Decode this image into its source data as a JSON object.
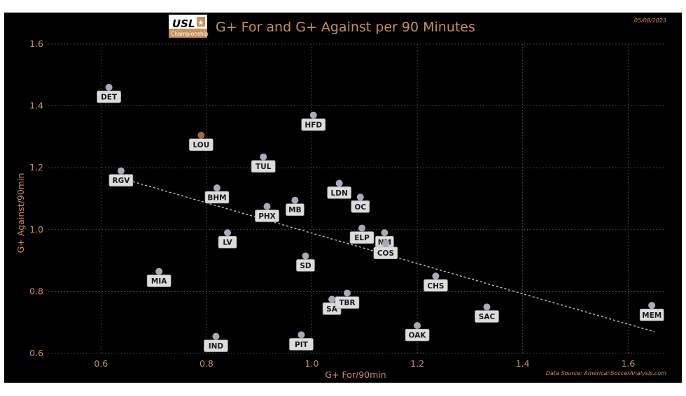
{
  "colors": {
    "accent": "#c8915a",
    "point": "#a9aab8",
    "highlight": "#a06a3c",
    "trend": "#cfcfcf",
    "background": "#000000"
  },
  "logo": {
    "text": "USL",
    "subtitle": "Championship"
  },
  "chart_data": {
    "type": "scatter",
    "title": "G+ For and G+ Against per 90 Minutes",
    "date": "05/08/2023",
    "source": "Data Source: AmericanSoccerAnalysis.com",
    "xlabel": "G+ For/90min",
    "ylabel": "G+ Against/90min",
    "xlim": [
      0.5,
      1.67
    ],
    "ylim": [
      0.6,
      1.6
    ],
    "xticks": [
      "0.6",
      "0.8",
      "1.0",
      "1.2",
      "1.4",
      "1.6"
    ],
    "yticks": [
      "0.6",
      "0.8",
      "1.0",
      "1.2",
      "1.4",
      "1.6"
    ],
    "grid": true,
    "trendline": {
      "x": [
        0.63,
        1.65
      ],
      "y": [
        1.17,
        0.67
      ]
    },
    "points": [
      {
        "label": "DET",
        "x": 0.615,
        "y": 1.46
      },
      {
        "label": "RGV",
        "x": 0.638,
        "y": 1.19
      },
      {
        "label": "MIA",
        "x": 0.71,
        "y": 0.865
      },
      {
        "label": "LOU",
        "x": 0.79,
        "y": 1.305,
        "highlight": true
      },
      {
        "label": "BHM",
        "x": 0.82,
        "y": 1.135
      },
      {
        "label": "IND",
        "x": 0.818,
        "y": 0.655
      },
      {
        "label": "LV",
        "x": 0.84,
        "y": 0.99
      },
      {
        "label": "TUL",
        "x": 0.908,
        "y": 1.235
      },
      {
        "label": "PHX",
        "x": 0.915,
        "y": 1.075
      },
      {
        "label": "MB",
        "x": 0.968,
        "y": 1.095
      },
      {
        "label": "PIT",
        "x": 0.98,
        "y": 0.66
      },
      {
        "label": "SD",
        "x": 0.988,
        "y": 0.915
      },
      {
        "label": "HFD",
        "x": 1.003,
        "y": 1.37
      },
      {
        "label": "SA",
        "x": 1.038,
        "y": 0.775
      },
      {
        "label": "LDN",
        "x": 1.052,
        "y": 1.15
      },
      {
        "label": "TBR",
        "x": 1.067,
        "y": 0.795
      },
      {
        "label": "OC",
        "x": 1.092,
        "y": 1.105
      },
      {
        "label": "ELP",
        "x": 1.095,
        "y": 1.005
      },
      {
        "label": "NM",
        "x": 1.138,
        "y": 0.99
      },
      {
        "label": "COS",
        "x": 1.14,
        "y": 0.955
      },
      {
        "label": "OAK",
        "x": 1.2,
        "y": 0.69
      },
      {
        "label": "CHS",
        "x": 1.235,
        "y": 0.85
      },
      {
        "label": "SAC",
        "x": 1.332,
        "y": 0.75
      },
      {
        "label": "MEM",
        "x": 1.645,
        "y": 0.755
      }
    ]
  }
}
